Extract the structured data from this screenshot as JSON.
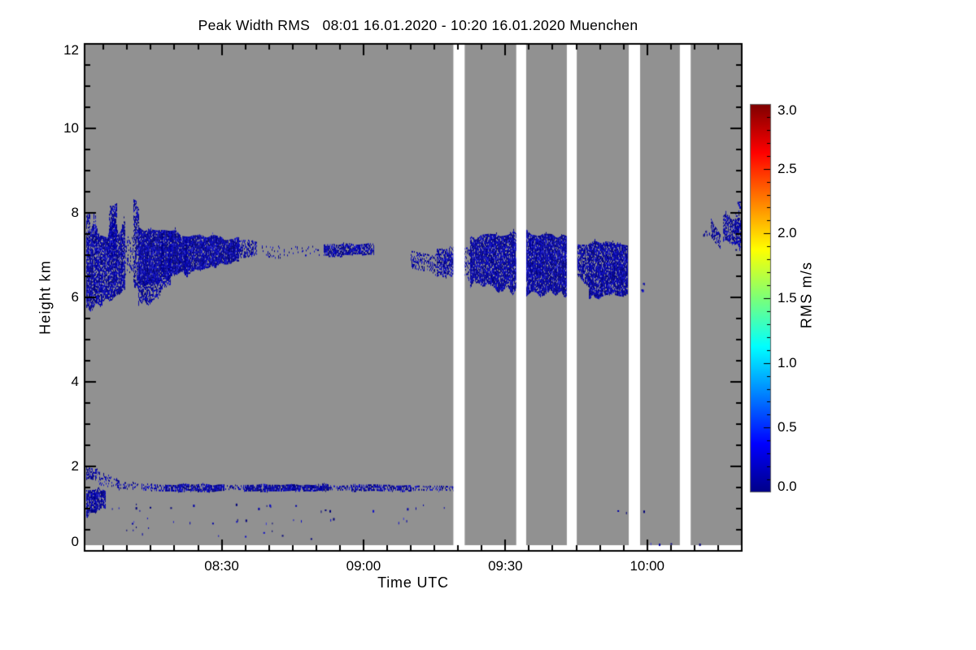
{
  "figure": {
    "title": "Peak Width RMS   08:01 16.01.2020 - 10:20 16.01.2020 Muenchen"
  },
  "chart_data": {
    "type": "heatmap",
    "title": "Peak Width RMS   08:01 16.01.2020 - 10:20 16.01.2020 Muenchen",
    "instrument_quantity": "Peak Width RMS",
    "station": "Muenchen",
    "time_start_utc": "08:01 16.01.2020",
    "time_end_utc": "10:20 16.01.2020",
    "xlabel": "Time UTC",
    "ylabel": "Height km",
    "ylim": [
      0,
      12
    ],
    "xlim_minutes_after_0800": [
      1,
      140
    ],
    "x_ticks": [
      {
        "label": "08:30",
        "minutes": 30
      },
      {
        "label": "09:00",
        "minutes": 60
      },
      {
        "label": "09:30",
        "minutes": 90
      },
      {
        "label": "10:00",
        "minutes": 120
      }
    ],
    "x_minor_interval_min": 5,
    "y_ticks": [
      {
        "label": "0",
        "h": 0
      },
      {
        "label": "2",
        "h": 2
      },
      {
        "label": "4",
        "h": 4
      },
      {
        "label": "6",
        "h": 6
      },
      {
        "label": "8",
        "h": 8
      },
      {
        "label": "10",
        "h": 10
      },
      {
        "label": "12",
        "h": 12
      }
    ],
    "y_minor_interval_km": 0.5,
    "background_color": "#919191",
    "gap_color": "#ffffff",
    "axis_color": "#000000",
    "observed_value_range_mps": [
      0.0,
      0.5
    ],
    "data_gaps_minutes": [
      [
        79.0,
        81.4
      ],
      [
        92.3,
        94.4
      ],
      [
        103.0,
        105.1
      ],
      [
        116.1,
        118.5
      ],
      [
        126.9,
        129.2
      ]
    ],
    "data_gaps_utc": [
      [
        "09:19",
        "09:21"
      ],
      [
        "09:32",
        "09:34"
      ],
      [
        "09:43",
        "09:45"
      ],
      [
        "09:56",
        "09:59"
      ],
      [
        "10:07",
        "10:09"
      ]
    ],
    "colorbar": {
      "label": "RMS m/s",
      "range": [
        0,
        3
      ],
      "ticks": [
        {
          "label": "0.0",
          "v": 0.0
        },
        {
          "label": "0.5",
          "v": 0.5
        },
        {
          "label": "1.0",
          "v": 1.0
        },
        {
          "label": "1.5",
          "v": 1.5
        },
        {
          "label": "2.0",
          "v": 2.0
        },
        {
          "label": "2.5",
          "v": 2.5
        },
        {
          "label": "3.0",
          "v": 3.0
        }
      ],
      "minor_interval": 0.1,
      "colormap": "jet",
      "stops": [
        [
          0,
          "#000088"
        ],
        [
          0.125,
          "#0000ff"
        ],
        [
          0.375,
          "#00ffff"
        ],
        [
          0.5,
          "#7cff78"
        ],
        [
          0.625,
          "#ffff00"
        ],
        [
          0.875,
          "#ff0000"
        ],
        [
          1,
          "#7e0000"
        ]
      ]
    },
    "cloud_palette": [
      [
        "#000078",
        0.3
      ],
      [
        "#0000a8",
        0.4
      ],
      [
        "#0d0dc8",
        0.24
      ],
      [
        "#3a3ad8",
        0.06
      ]
    ],
    "features": [
      {
        "name": "upper-left-mass",
        "kind": "cloud",
        "t0": 1,
        "t1": 9.4,
        "htop0": 7.5,
        "htop1": 7.6,
        "hbot0": 5.85,
        "hbot1": 6.15,
        "jt": 0.5,
        "jb": 0.3,
        "d": 0.8
      },
      {
        "name": "upper-left-spike-a",
        "kind": "cloud",
        "t0": 1.0,
        "t1": 2.0,
        "htop0": 7.95,
        "htop1": 7.9,
        "hbot0": 7.3,
        "hbot1": 7.3,
        "jt": 0.12,
        "jb": 0.15,
        "d": 0.6
      },
      {
        "name": "upper-left-spike-b",
        "kind": "cloud",
        "t0": 6.2,
        "t1": 7.7,
        "htop0": 8.15,
        "htop1": 8.2,
        "hbot0": 6.9,
        "hbot1": 7.0,
        "jt": 0.12,
        "jb": 0.35,
        "d": 0.6
      },
      {
        "name": "upper-filament-sparse",
        "kind": "cloud",
        "t0": 9.4,
        "t1": 11.3,
        "htop0": 7.35,
        "htop1": 7.5,
        "hbot0": 6.6,
        "hbot1": 6.7,
        "jt": 0.3,
        "jb": 0.3,
        "d": 0.22
      },
      {
        "name": "upper-filament",
        "kind": "cloud",
        "t0": 11.3,
        "t1": 12.3,
        "htop0": 8.3,
        "htop1": 8.25,
        "hbot0": 6.5,
        "hbot1": 6.4,
        "jt": 0.1,
        "jb": 0.35,
        "d": 0.55
      },
      {
        "name": "upper-wedge",
        "kind": "cloud",
        "t0": 12.3,
        "t1": 33.5,
        "htop0": 7.6,
        "htop1": 7.35,
        "hbot0": 6.3,
        "hbot1": 6.95,
        "jt": 0.13,
        "jb": 0.16,
        "d": 0.92
      },
      {
        "name": "upper-wedge-tail",
        "kind": "cloud",
        "t0": 12.3,
        "t1": 19,
        "htop0": 6.35,
        "htop1": 6.5,
        "hbot0": 5.8,
        "hbot1": 6.35,
        "jt": 0.06,
        "jb": 0.22,
        "d": 0.65
      },
      {
        "name": "upper-wedge-ext",
        "kind": "cloud",
        "t0": 33.5,
        "t1": 37.3,
        "htop0": 7.35,
        "htop1": 7.32,
        "hbot0": 6.95,
        "hbot1": 7.05,
        "jt": 0.1,
        "jb": 0.08,
        "d": 0.55
      },
      {
        "name": "band-dashes-west",
        "kind": "cloud",
        "t0": 38.5,
        "t1": 50.5,
        "htop0": 7.22,
        "htop1": 7.2,
        "hbot0": 6.95,
        "hbot1": 7.0,
        "jt": 0.05,
        "jb": 0.05,
        "d": 0.1
      },
      {
        "name": "band-streak",
        "kind": "cloud",
        "t0": 51.5,
        "t1": 62,
        "htop0": 7.24,
        "htop1": 7.26,
        "hbot0": 7.0,
        "hbot1": 7.04,
        "jt": 0.05,
        "jb": 0.05,
        "d": 0.75
      },
      {
        "name": "band-dashes-east",
        "kind": "cloud",
        "t0": 70,
        "t1": 75.5,
        "htop0": 7.05,
        "htop1": 7.0,
        "hbot0": 6.72,
        "hbot1": 6.6,
        "jt": 0.08,
        "jb": 0.1,
        "d": 0.35
      },
      {
        "name": "pre-gap-blob",
        "kind": "cloud",
        "t0": 75.5,
        "t1": 79,
        "htop0": 7.1,
        "htop1": 7.15,
        "hbot0": 6.6,
        "hbot1": 6.5,
        "jt": 0.1,
        "jb": 0.12,
        "d": 0.65
      },
      {
        "name": "blob-0921-lead",
        "kind": "cloud",
        "t0": 81.4,
        "t1": 82.8,
        "htop0": 7.15,
        "htop1": 7.25,
        "hbot0": 6.5,
        "hbot1": 6.4,
        "jt": 0.15,
        "jb": 0.15,
        "d": 0.35
      },
      {
        "name": "blob-0921-0932",
        "kind": "cloud",
        "t0": 82.5,
        "t1": 92.3,
        "htop0": 7.35,
        "htop1": 7.5,
        "hbot0": 6.35,
        "hbot1": 6.2,
        "jt": 0.18,
        "jb": 0.22,
        "d": 0.85
      },
      {
        "name": "blob-0934-0943",
        "kind": "cloud",
        "t0": 94.4,
        "t1": 103,
        "htop0": 7.5,
        "htop1": 7.42,
        "hbot0": 6.15,
        "hbot1": 6.1,
        "jt": 0.16,
        "jb": 0.2,
        "d": 0.9
      },
      {
        "name": "blob-0945-0956-west",
        "kind": "cloud",
        "t0": 105.3,
        "t1": 107.6,
        "htop0": 7.2,
        "htop1": 7.28,
        "hbot0": 6.55,
        "hbot1": 6.25,
        "jt": 0.12,
        "jb": 0.15,
        "d": 0.7
      },
      {
        "name": "blob-0945-0956",
        "kind": "cloud",
        "t0": 107.6,
        "t1": 115.7,
        "htop0": 7.3,
        "htop1": 7.2,
        "hbot0": 6.05,
        "hbot1": 6.1,
        "jt": 0.14,
        "jb": 0.12,
        "d": 0.85
      },
      {
        "name": "speck-after-0958",
        "kind": "dots",
        "t0": 118.6,
        "t1": 119.4,
        "h0": 6.15,
        "h1": 6.35,
        "n": 6
      },
      {
        "name": "right-dots",
        "kind": "dots",
        "t0": 131.8,
        "t1": 133.2,
        "h0": 7.45,
        "h1": 7.65,
        "n": 8
      },
      {
        "name": "right-streak",
        "kind": "cloud",
        "t0": 133.4,
        "t1": 135.3,
        "htop0": 7.85,
        "htop1": 7.5,
        "hbot0": 7.5,
        "hbot1": 7.2,
        "jt": 0.06,
        "jb": 0.08,
        "d": 0.6
      },
      {
        "name": "right-patch",
        "kind": "cloud",
        "t0": 136,
        "t1": 139.9,
        "htop0": 7.9,
        "htop1": 7.85,
        "hbot0": 7.35,
        "hbot1": 7.2,
        "jt": 0.12,
        "jb": 0.15,
        "d": 0.7
      },
      {
        "name": "right-edge-bits",
        "kind": "dots",
        "t0": 138.6,
        "t1": 139.9,
        "h0": 7.0,
        "h1": 7.35,
        "n": 10
      },
      {
        "name": "right-top-bits",
        "kind": "dots",
        "t0": 138.6,
        "t1": 139.9,
        "h0": 7.9,
        "h1": 8.3,
        "n": 8
      },
      {
        "name": "low-left-top",
        "kind": "cloud",
        "t0": 1,
        "t1": 3.3,
        "htop0": 2.0,
        "htop1": 1.95,
        "hbot0": 1.75,
        "hbot1": 1.7,
        "jt": 0.08,
        "jb": 0.08,
        "d": 0.5
      },
      {
        "name": "low-left-mass",
        "kind": "cloud",
        "t0": 1,
        "t1": 5.3,
        "htop0": 1.45,
        "htop1": 1.4,
        "hbot0": 0.85,
        "hbot1": 1.05,
        "jt": 0.1,
        "jb": 0.18,
        "d": 0.8
      },
      {
        "name": "low-left-streaks",
        "kind": "cloud",
        "t0": 3.2,
        "t1": 8.2,
        "htop0": 1.95,
        "htop1": 1.62,
        "hbot0": 1.68,
        "hbot1": 1.45,
        "jt": 0.1,
        "jb": 0.1,
        "d": 0.3
      },
      {
        "name": "pbl-band-seg-1",
        "kind": "cloud",
        "t0": 7.5,
        "t1": 13,
        "htop0": 1.62,
        "htop1": 1.58,
        "hbot0": 1.5,
        "hbot1": 1.46,
        "jt": 0.04,
        "jb": 0.04,
        "d": 0.25
      },
      {
        "name": "pbl-band-seg-2",
        "kind": "cloud",
        "t0": 13,
        "t1": 18,
        "htop0": 1.56,
        "htop1": 1.56,
        "hbot0": 1.44,
        "hbot1": 1.44,
        "jt": 0.03,
        "jb": 0.03,
        "d": 0.5
      },
      {
        "name": "pbl-band-seg-3",
        "kind": "cloud",
        "t0": 18,
        "t1": 30.5,
        "htop0": 1.57,
        "htop1": 1.55,
        "hbot0": 1.42,
        "hbot1": 1.43,
        "jt": 0.04,
        "jb": 0.03,
        "d": 0.85
      },
      {
        "name": "pbl-band-seg-4",
        "kind": "cloud",
        "t0": 30.5,
        "t1": 34.5,
        "htop0": 1.54,
        "htop1": 1.54,
        "hbot0": 1.46,
        "hbot1": 1.46,
        "jt": 0.03,
        "jb": 0.03,
        "d": 0.3
      },
      {
        "name": "pbl-band-seg-5",
        "kind": "cloud",
        "t0": 34.5,
        "t1": 52.5,
        "htop0": 1.57,
        "htop1": 1.56,
        "hbot0": 1.42,
        "hbot1": 1.44,
        "jt": 0.04,
        "jb": 0.03,
        "d": 0.85
      },
      {
        "name": "pbl-band-seg-6",
        "kind": "cloud",
        "t0": 52.5,
        "t1": 57.5,
        "htop0": 1.55,
        "htop1": 1.54,
        "hbot0": 1.45,
        "hbot1": 1.45,
        "jt": 0.03,
        "jb": 0.03,
        "d": 0.5
      },
      {
        "name": "pbl-band-seg-7",
        "kind": "cloud",
        "t0": 57.5,
        "t1": 70,
        "htop0": 1.56,
        "htop1": 1.55,
        "hbot0": 1.43,
        "hbot1": 1.44,
        "jt": 0.04,
        "jb": 0.03,
        "d": 0.65
      },
      {
        "name": "pbl-band-seg-8",
        "kind": "cloud",
        "t0": 70,
        "t1": 79,
        "htop0": 1.54,
        "htop1": 1.52,
        "hbot0": 1.45,
        "hbot1": 1.44,
        "jt": 0.03,
        "jb": 0.03,
        "d": 0.4
      },
      {
        "name": "dots-1km",
        "kind": "dots",
        "t0": 5,
        "t1": 78,
        "h0": 0.95,
        "h1": 1.12,
        "n": 22
      },
      {
        "name": "dots-0p7km",
        "kind": "dots",
        "t0": 8,
        "t1": 72,
        "h0": 0.66,
        "h1": 0.8,
        "n": 18
      },
      {
        "name": "dots-0p5km",
        "kind": "dots",
        "t0": 9,
        "t1": 15,
        "h0": 0.4,
        "h1": 0.62,
        "n": 5
      },
      {
        "name": "dots-0p3km",
        "kind": "dots",
        "t0": 24,
        "t1": 50,
        "h0": 0.28,
        "h1": 0.52,
        "n": 6
      },
      {
        "name": "dots-right-1km",
        "kind": "dots",
        "t0": 110,
        "t1": 121,
        "h0": 0.9,
        "h1": 1.0,
        "n": 3
      },
      {
        "name": "dots-bottom-right",
        "kind": "dots",
        "t0": 119,
        "t1": 136,
        "h0": 0.13,
        "h1": 0.23,
        "n": 4
      }
    ]
  }
}
